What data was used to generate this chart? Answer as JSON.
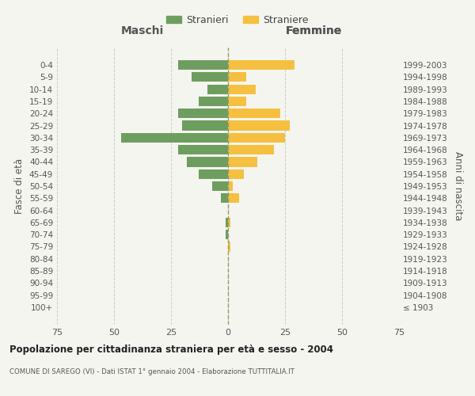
{
  "age_groups": [
    "100+",
    "95-99",
    "90-94",
    "85-89",
    "80-84",
    "75-79",
    "70-74",
    "65-69",
    "60-64",
    "55-59",
    "50-54",
    "45-49",
    "40-44",
    "35-39",
    "30-34",
    "25-29",
    "20-24",
    "15-19",
    "10-14",
    "5-9",
    "0-4"
  ],
  "birth_years": [
    "≤ 1903",
    "1904-1908",
    "1909-1913",
    "1914-1918",
    "1919-1923",
    "1924-1928",
    "1929-1933",
    "1934-1938",
    "1939-1943",
    "1944-1948",
    "1949-1953",
    "1954-1958",
    "1959-1963",
    "1964-1968",
    "1969-1973",
    "1974-1978",
    "1979-1983",
    "1984-1988",
    "1989-1993",
    "1994-1998",
    "1999-2003"
  ],
  "males": [
    0,
    0,
    0,
    0,
    0,
    0,
    1,
    1,
    0,
    3,
    7,
    13,
    18,
    22,
    47,
    20,
    22,
    13,
    9,
    16,
    22
  ],
  "females": [
    0,
    0,
    0,
    0,
    0,
    1,
    0,
    1,
    0,
    5,
    2,
    7,
    13,
    20,
    25,
    27,
    23,
    8,
    12,
    8,
    29
  ],
  "male_color": "#6e9e5f",
  "female_color": "#f5c040",
  "background_color": "#f5f5f0",
  "grid_color": "#cccccc",
  "title": "Popolazione per cittadinanza straniera per età e sesso - 2004",
  "subtitle": "COMUNE DI SAREGO (VI) - Dati ISTAT 1° gennaio 2004 - Elaborazione TUTTITALIA.IT",
  "xlabel_left": "Maschi",
  "xlabel_right": "Femmine",
  "ylabel_left": "Fasce di età",
  "ylabel_right": "Anni di nascita",
  "legend_males": "Stranieri",
  "legend_females": "Straniere",
  "xlim": 75,
  "bar_height": 0.8
}
